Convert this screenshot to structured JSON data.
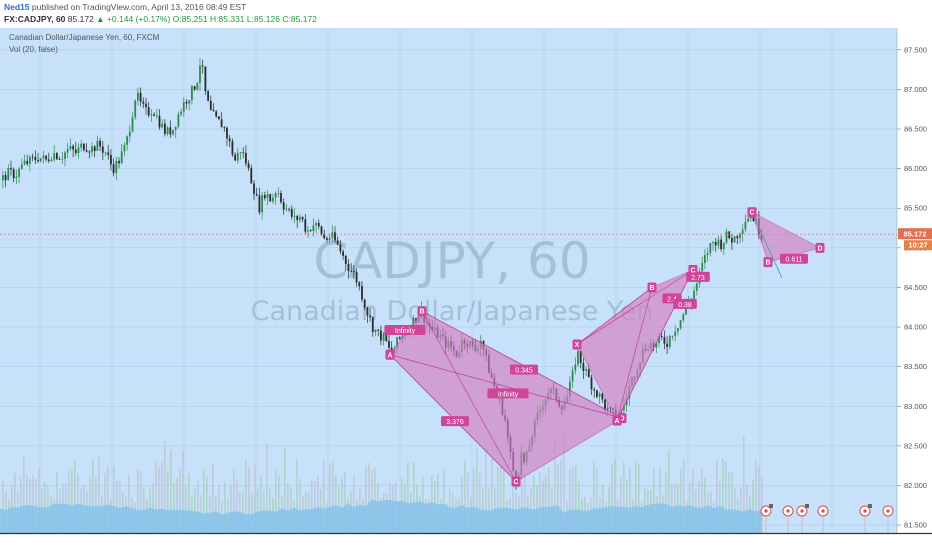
{
  "header": {
    "publisher": "Ned15",
    "published_text": "published on TradingView.com, April 13, 2016 08:49 EST",
    "symbol": "FX:CADJPY, 60",
    "last": "85.172",
    "change": "+0.144 (+0.17%)",
    "open": "O:85.251",
    "high": "H:85.331",
    "low": "L:85.126",
    "close": "C:85.172"
  },
  "legend": {
    "title": "Canadian Dollar/Japanese Yen, 60, FXCM",
    "volume": "Vol (20, false)"
  },
  "watermark": {
    "symbol": "CADJPY, 60",
    "name": "Canadian Dollar/Japanese Yen"
  },
  "colors": {
    "background": "#c6e1f9",
    "up": "#2e8b4e",
    "down": "#2b2b2b",
    "pattern_fill": "#d67ec3",
    "pattern_stroke": "#c43a9e",
    "label_bg": "#d0459c",
    "volume": "#7fc0ec",
    "price_label": "#e07050"
  },
  "chart_data": {
    "type": "candlestick",
    "y_axis": {
      "ticks": [
        "87.500",
        "87.000",
        "86.500",
        "86.000",
        "85.500",
        "85.000",
        "84.500",
        "84.000",
        "83.500",
        "83.000",
        "82.500",
        "82.000",
        "81.500"
      ],
      "ylim": [
        81.4,
        87.75
      ]
    },
    "price_path": [
      [
        0,
        85.85
      ],
      [
        8,
        85.95
      ],
      [
        15,
        85.92
      ],
      [
        22,
        86.05
      ],
      [
        30,
        86.1
      ],
      [
        38,
        86.15
      ],
      [
        45,
        86.1
      ],
      [
        52,
        86.2
      ],
      [
        60,
        86.15
      ],
      [
        68,
        86.25
      ],
      [
        75,
        86.2
      ],
      [
        82,
        86.3
      ],
      [
        90,
        86.25
      ],
      [
        98,
        86.3
      ],
      [
        105,
        86.2
      ],
      [
        112,
        86.0
      ],
      [
        118,
        86.1
      ],
      [
        125,
        86.3
      ],
      [
        130,
        86.6
      ],
      [
        135,
        86.95
      ],
      [
        140,
        86.8
      ],
      [
        146,
        86.7
      ],
      [
        152,
        86.75
      ],
      [
        158,
        86.6
      ],
      [
        165,
        86.45
      ],
      [
        172,
        86.5
      ],
      [
        178,
        86.7
      ],
      [
        184,
        86.85
      ],
      [
        190,
        86.95
      ],
      [
        196,
        87.1
      ],
      [
        200,
        87.4
      ],
      [
        205,
        86.9
      ],
      [
        210,
        86.7
      ],
      [
        216,
        86.6
      ],
      [
        222,
        86.55
      ],
      [
        228,
        86.35
      ],
      [
        234,
        86.1
      ],
      [
        240,
        86.25
      ],
      [
        246,
        86.05
      ],
      [
        252,
        85.8
      ],
      [
        258,
        85.5
      ],
      [
        264,
        85.7
      ],
      [
        270,
        85.6
      ],
      [
        276,
        85.75
      ],
      [
        282,
        85.55
      ],
      [
        288,
        85.45
      ],
      [
        294,
        85.35
      ],
      [
        300,
        85.4
      ],
      [
        306,
        85.2
      ],
      [
        312,
        85.3
      ],
      [
        318,
        85.25
      ],
      [
        324,
        85.1
      ],
      [
        330,
        85.15
      ],
      [
        336,
        85.05
      ],
      [
        342,
        84.9
      ],
      [
        348,
        84.75
      ],
      [
        354,
        84.65
      ],
      [
        360,
        84.45
      ],
      [
        366,
        84.2
      ],
      [
        372,
        84.0
      ],
      [
        378,
        83.9
      ],
      [
        384,
        83.85
      ],
      [
        390,
        83.65
      ],
      [
        396,
        83.8
      ],
      [
        402,
        83.9
      ],
      [
        408,
        84.0
      ],
      [
        414,
        84.1
      ],
      [
        420,
        84.2
      ],
      [
        426,
        84.05
      ],
      [
        432,
        83.95
      ],
      [
        438,
        83.9
      ],
      [
        444,
        83.8
      ],
      [
        450,
        83.75
      ],
      [
        456,
        83.65
      ],
      [
        462,
        83.85
      ],
      [
        468,
        83.8
      ],
      [
        474,
        83.7
      ],
      [
        480,
        83.85
      ],
      [
        486,
        83.55
      ],
      [
        492,
        83.3
      ],
      [
        498,
        83.1
      ],
      [
        504,
        82.85
      ],
      [
        508,
        82.5
      ],
      [
        512,
        82.2
      ],
      [
        516,
        82.05
      ],
      [
        520,
        82.4
      ],
      [
        524,
        82.25
      ],
      [
        530,
        82.6
      ],
      [
        536,
        82.85
      ],
      [
        542,
        83.05
      ],
      [
        548,
        83.2
      ],
      [
        554,
        83.15
      ],
      [
        560,
        83.0
      ],
      [
        566,
        83.1
      ],
      [
        572,
        83.4
      ],
      [
        576,
        83.7
      ],
      [
        582,
        83.5
      ],
      [
        588,
        83.35
      ],
      [
        594,
        83.2
      ],
      [
        600,
        83.1
      ],
      [
        606,
        82.95
      ],
      [
        612,
        82.9
      ],
      [
        618,
        82.85
      ],
      [
        624,
        83.05
      ],
      [
        630,
        83.3
      ],
      [
        636,
        83.5
      ],
      [
        642,
        83.7
      ],
      [
        648,
        83.8
      ],
      [
        654,
        83.75
      ],
      [
        660,
        83.85
      ],
      [
        666,
        83.8
      ],
      [
        672,
        83.95
      ],
      [
        678,
        84.05
      ],
      [
        684,
        84.2
      ],
      [
        690,
        84.35
      ],
      [
        696,
        84.55
      ],
      [
        702,
        84.8
      ],
      [
        708,
        85.0
      ],
      [
        714,
        85.1
      ],
      [
        720,
        85.05
      ],
      [
        726,
        85.15
      ],
      [
        732,
        85.1
      ],
      [
        738,
        85.2
      ],
      [
        744,
        85.35
      ],
      [
        750,
        85.45
      ],
      [
        756,
        85.3
      ],
      [
        760,
        85.17
      ]
    ],
    "current_price": 85.172,
    "price_labels": [
      "85.172",
      "10:27"
    ],
    "harmonic_patterns": [
      {
        "points": [
          {
            "label": "A",
            "x": 390,
            "y": 83.65
          },
          {
            "label": "B",
            "x": 422,
            "y": 84.2
          },
          {
            "label": "C",
            "x": 516,
            "y": 82.05
          },
          {
            "label": "D",
            "x": 622,
            "y": 82.85
          }
        ],
        "ratios": [
          {
            "text": "Infinity",
            "x": 405,
            "y": 83.95
          },
          {
            "text": "3.376",
            "x": 455,
            "y": 82.8
          },
          {
            "text": "0.345",
            "x": 524,
            "y": 83.45
          },
          {
            "text": "Infinity",
            "x": 508,
            "y": 83.15
          }
        ]
      },
      {
        "points": [
          {
            "label": "X",
            "x": 577,
            "y": 83.78
          },
          {
            "label": "A",
            "x": 617,
            "y": 82.82
          },
          {
            "label": "B",
            "x": 652,
            "y": 84.5
          },
          {
            "label": "C",
            "x": 693,
            "y": 84.72
          }
        ],
        "ratios": [
          {
            "text": "2.4",
            "x": 672,
            "y": 84.35
          },
          {
            "text": "0.38",
            "x": 685,
            "y": 84.28
          },
          {
            "text": "2.73",
            "x": 698,
            "y": 84.62
          }
        ]
      },
      {
        "points": [
          {
            "label": "C",
            "x": 752,
            "y": 85.45
          },
          {
            "label": "B",
            "x": 768,
            "y": 84.82
          },
          {
            "label": "D",
            "x": 820,
            "y": 85.0
          }
        ],
        "ratios": [
          {
            "text": "0.611",
            "x": 794,
            "y": 84.85
          }
        ]
      }
    ],
    "volume_series": "Vol (20, false)"
  }
}
